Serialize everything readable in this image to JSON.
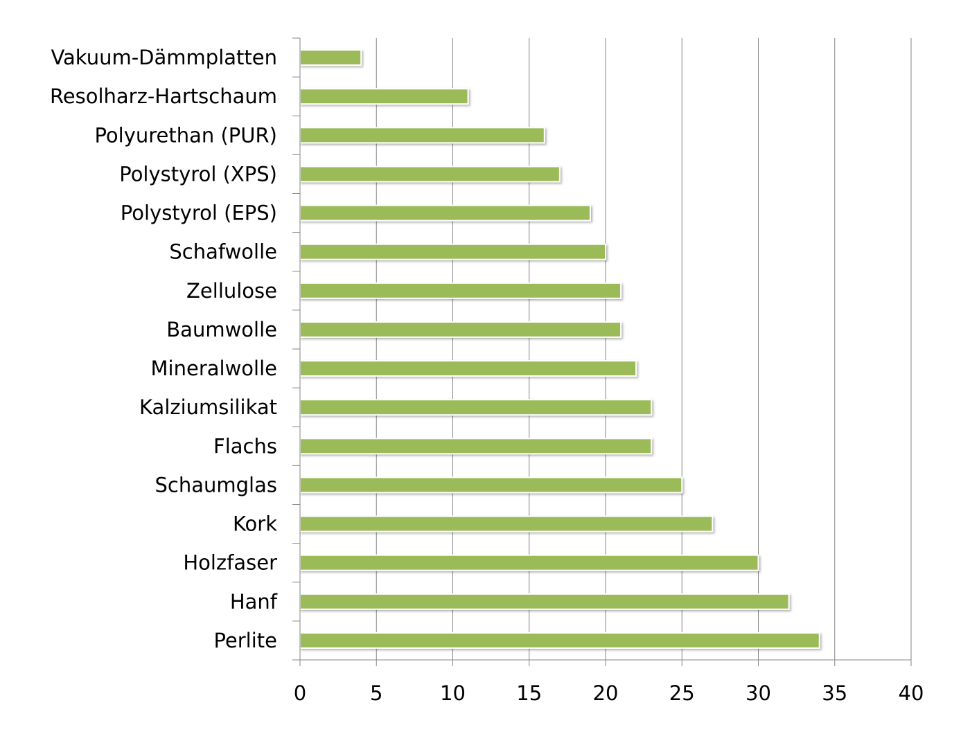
{
  "chart_data": {
    "type": "bar",
    "orientation": "horizontal",
    "title": "",
    "xlabel": "",
    "ylabel": "",
    "categories": [
      "Vakuum-Dämmplatten",
      "Resolharz-Hartschaum",
      "Polyurethan (PUR)",
      "Polystyrol (XPS)",
      "Polystyrol (EPS)",
      "Schafwolle",
      "Zellulose",
      "Baumwolle",
      "Mineralwolle",
      "Kalziumsilikat",
      "Flachs",
      "Schaumglas",
      "Kork",
      "Holzfaser",
      "Hanf",
      "Perlite"
    ],
    "values": [
      4,
      11,
      16,
      17,
      19,
      20,
      21,
      21,
      22,
      23,
      23,
      25,
      27,
      30,
      32,
      34
    ],
    "xlim": [
      0,
      40
    ],
    "xticks": [
      "0",
      "5",
      "10",
      "15",
      "20",
      "25",
      "30",
      "35",
      "40"
    ],
    "grid": "vertical",
    "legend": "none",
    "bar_color": "#9BBB59"
  }
}
